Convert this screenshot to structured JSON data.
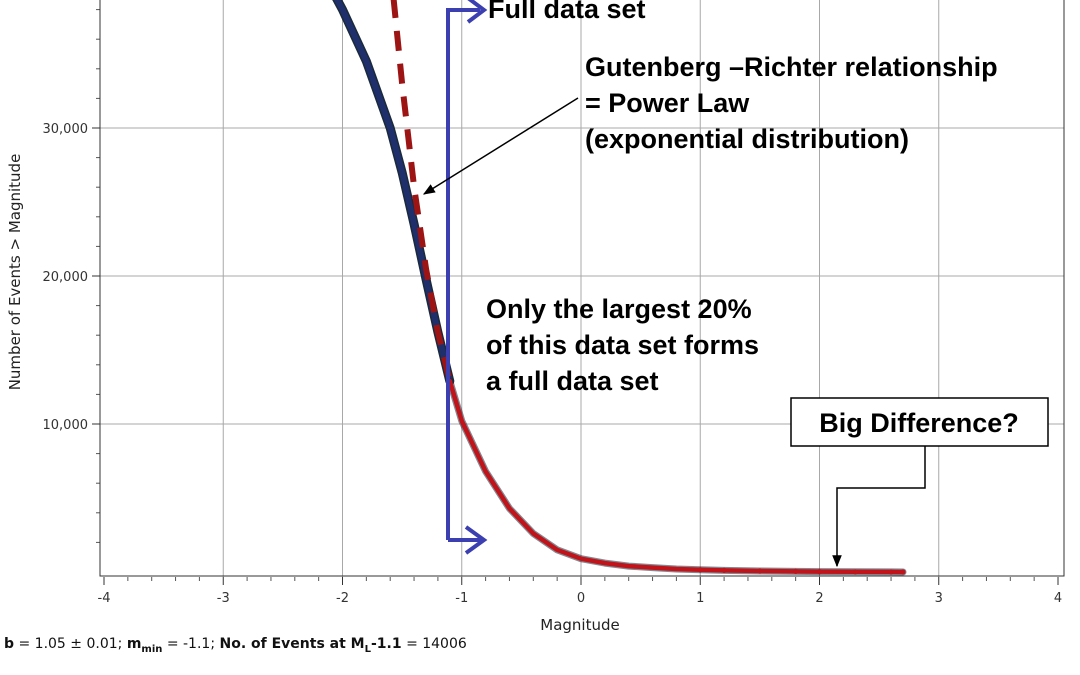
{
  "chart_data": {
    "type": "line",
    "xlabel": "Magnitude",
    "ylabel": "Number of Events > Magnitude",
    "xlim": [
      -4,
      4
    ],
    "ylim": [
      0,
      40000
    ],
    "x_ticks": [
      -4,
      -3,
      -2,
      -1,
      0,
      1,
      2,
      3,
      4
    ],
    "y_ticks": [
      10000,
      20000,
      30000
    ],
    "y_tick_labels": [
      "10,000",
      "20,000",
      "30,000"
    ],
    "grid": true,
    "series": [
      {
        "style": "observed",
        "color": "#1f2f6b",
        "points": [
          [
            -2.2,
            41000
          ],
          [
            -2.0,
            38000
          ],
          [
            -1.8,
            34500
          ],
          [
            -1.6,
            30000
          ],
          [
            -1.5,
            27000
          ],
          [
            -1.4,
            23500
          ],
          [
            -1.3,
            19800
          ],
          [
            -1.2,
            16200
          ],
          [
            -1.1,
            12900
          ]
        ]
      },
      {
        "style": "observed",
        "color": "#c0141a",
        "points": [
          [
            -1.1,
            12900
          ],
          [
            -1.0,
            10200
          ],
          [
            -0.8,
            6800
          ],
          [
            -0.6,
            4300
          ],
          [
            -0.4,
            2600
          ],
          [
            -0.2,
            1500
          ],
          [
            0.0,
            900
          ],
          [
            0.2,
            600
          ],
          [
            0.4,
            400
          ],
          [
            0.6,
            300
          ],
          [
            0.8,
            200
          ],
          [
            1.0,
            150
          ],
          [
            1.2,
            110
          ],
          [
            1.5,
            70
          ],
          [
            1.8,
            40
          ],
          [
            2.0,
            25
          ],
          [
            2.3,
            12
          ],
          [
            2.6,
            5
          ],
          [
            2.7,
            3
          ]
        ]
      },
      {
        "style": "power-law-fit",
        "color": "#9c1414",
        "points": [
          [
            -1.6,
            41000
          ],
          [
            -1.5,
            33000
          ],
          [
            -1.4,
            26000
          ],
          [
            -1.3,
            20500
          ],
          [
            -1.2,
            16200
          ],
          [
            -1.1,
            12900
          ]
        ]
      }
    ],
    "annotations": [
      {
        "id": "full-data-set-top",
        "text": "Full data set"
      },
      {
        "id": "gutenberg-richter",
        "lines": [
          "Gutenberg –Richter relationship",
          "= Power Law",
          "(exponential distribution)"
        ]
      },
      {
        "id": "largest-20",
        "lines": [
          "Only the largest 20%",
          "of this data set forms",
          "a full data set"
        ]
      },
      {
        "id": "big-difference",
        "text": "Big Difference?"
      }
    ],
    "stats": {
      "b_label": "b",
      "b_value": "= 1.05 ± 0.01;",
      "mmin_label": "m",
      "mmin_sub": "min",
      "mmin_value": "= -1.1;",
      "events_label": "No. of Events at M",
      "events_sub": "L",
      "events_suffix": "-1.1",
      "events_value": "= 14006"
    }
  }
}
